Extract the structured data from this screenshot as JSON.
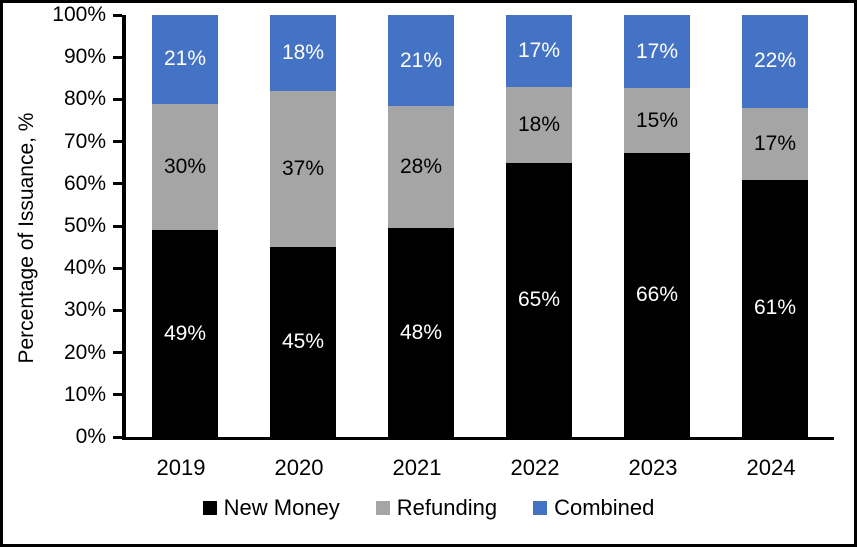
{
  "chart_data": {
    "type": "bar",
    "stacked": true,
    "title": "",
    "categories": [
      "2019",
      "2020",
      "2021",
      "2022",
      "2023",
      "2024"
    ],
    "series": [
      {
        "name": "New Money",
        "color": "#000000",
        "label_color": "#FFFFFF",
        "values": [
          49,
          45,
          48,
          65,
          66,
          61
        ]
      },
      {
        "name": "Refunding",
        "color": "#A5A5A5",
        "label_color": "#000000",
        "values": [
          30,
          37,
          28,
          18,
          15,
          17
        ]
      },
      {
        "name": "Combined",
        "color": "#4472C4",
        "label_color": "#FFFFFF",
        "values": [
          21,
          18,
          21,
          17,
          17,
          22
        ]
      }
    ],
    "ylabel": "Percentage of Issuance, %",
    "ylim": [
      0,
      100
    ],
    "ytick_step": 10,
    "ytick_suffix": "%",
    "value_suffix": "%",
    "legend_position": "bottom",
    "grid": false,
    "axis_color": "#000000",
    "background_color": "#FFFFFF"
  }
}
